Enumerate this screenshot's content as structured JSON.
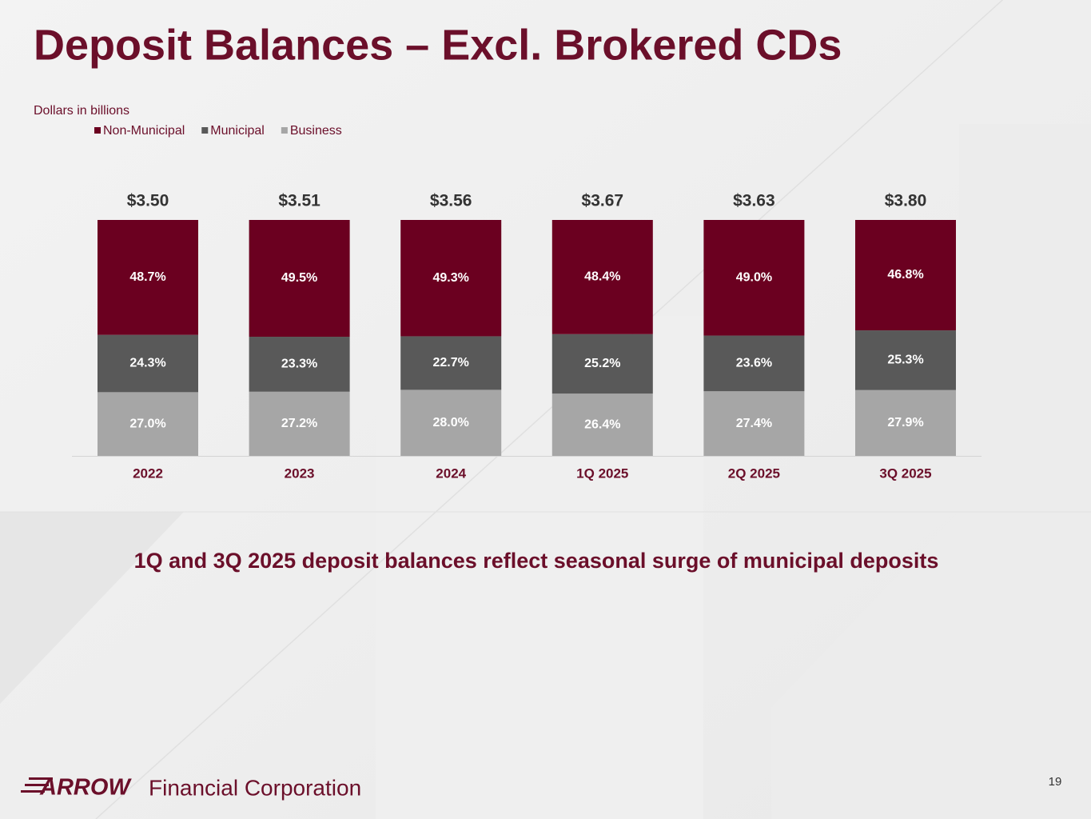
{
  "chart_data": {
    "type": "stacked_bar_100",
    "title": "Deposit Balances – Excl. Brokered CDs",
    "subtitle": "Dollars in billions",
    "categories": [
      "2022",
      "2023",
      "2024",
      "1Q 2025",
      "2Q 2025",
      "3Q 2025"
    ],
    "series": [
      {
        "name": "Non-Municipal",
        "color": "#6b0020",
        "values": [
          48.7,
          49.5,
          49.3,
          48.4,
          49.0,
          46.8
        ],
        "value_labels": [
          "48.7%",
          "49.5%",
          "49.3%",
          "48.4%",
          "49.0%",
          "46.8%"
        ]
      },
      {
        "name": "Municipal",
        "color": "#595959",
        "values": [
          24.3,
          23.3,
          22.7,
          25.2,
          23.6,
          25.3
        ],
        "value_labels": [
          "24.3%",
          "23.3%",
          "22.7%",
          "25.2%",
          "23.6%",
          "25.3%"
        ]
      },
      {
        "name": "Business",
        "color": "#a6a6a6",
        "values": [
          27.0,
          27.2,
          28.0,
          26.4,
          27.4,
          27.9
        ],
        "value_labels": [
          "27.0%",
          "27.2%",
          "28.0%",
          "26.4%",
          "27.4%",
          "27.9%"
        ]
      }
    ],
    "totals": {
      "values": [
        3.5,
        3.51,
        3.56,
        3.67,
        3.63,
        3.8
      ],
      "value_labels": [
        "$3.50",
        "$3.51",
        "$3.56",
        "$3.67",
        "$3.63",
        "$3.80"
      ]
    },
    "ylim": [
      0,
      100
    ],
    "legend": "top-left",
    "annotation": "1Q and 3Q 2025 deposit balances reflect seasonal surge of municipal deposits"
  },
  "footer": {
    "logo": "ARROW",
    "company": "Financial Corporation",
    "page_number": "19"
  }
}
